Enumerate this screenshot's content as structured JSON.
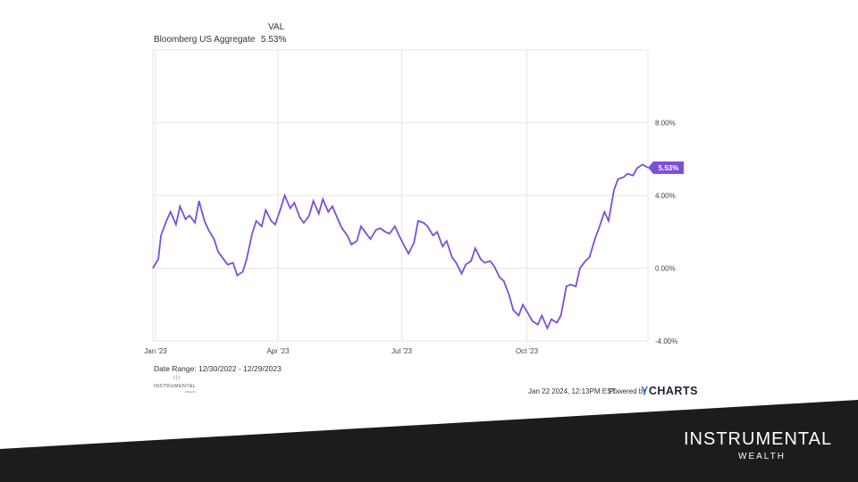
{
  "legend": {
    "header": "VAL",
    "series_name": "Bloomberg US Aggregate",
    "series_value": "5.53%"
  },
  "chart_data": {
    "type": "line",
    "series": [
      {
        "name": "Bloomberg US Aggregate",
        "color": "#7b4fd8",
        "points": [
          [
            "2022-12-30",
            0.0
          ],
          [
            "2023-01-03",
            0.5
          ],
          [
            "2023-01-05",
            1.8
          ],
          [
            "2023-01-09",
            2.6
          ],
          [
            "2023-01-12",
            3.1
          ],
          [
            "2023-01-16",
            2.4
          ],
          [
            "2023-01-19",
            3.4
          ],
          [
            "2023-01-23",
            2.7
          ],
          [
            "2023-01-26",
            2.9
          ],
          [
            "2023-01-30",
            2.5
          ],
          [
            "2023-02-02",
            3.7
          ],
          [
            "2023-02-06",
            2.6
          ],
          [
            "2023-02-09",
            2.1
          ],
          [
            "2023-02-13",
            1.6
          ],
          [
            "2023-02-16",
            0.9
          ],
          [
            "2023-02-20",
            0.5
          ],
          [
            "2023-02-23",
            0.2
          ],
          [
            "2023-02-27",
            0.3
          ],
          [
            "2023-03-02",
            -0.4
          ],
          [
            "2023-03-06",
            -0.2
          ],
          [
            "2023-03-09",
            0.5
          ],
          [
            "2023-03-13",
            1.9
          ],
          [
            "2023-03-16",
            2.6
          ],
          [
            "2023-03-20",
            2.3
          ],
          [
            "2023-03-23",
            3.2
          ],
          [
            "2023-03-27",
            2.6
          ],
          [
            "2023-03-30",
            2.4
          ],
          [
            "2023-04-03",
            3.3
          ],
          [
            "2023-04-06",
            4.0
          ],
          [
            "2023-04-10",
            3.3
          ],
          [
            "2023-04-13",
            3.6
          ],
          [
            "2023-04-17",
            2.8
          ],
          [
            "2023-04-20",
            2.5
          ],
          [
            "2023-04-24",
            2.9
          ],
          [
            "2023-04-27",
            3.7
          ],
          [
            "2023-05-01",
            3.0
          ],
          [
            "2023-05-04",
            3.8
          ],
          [
            "2023-05-08",
            3.1
          ],
          [
            "2023-05-11",
            3.4
          ],
          [
            "2023-05-15",
            2.7
          ],
          [
            "2023-05-18",
            2.2
          ],
          [
            "2023-05-22",
            1.8
          ],
          [
            "2023-05-25",
            1.3
          ],
          [
            "2023-05-29",
            1.5
          ],
          [
            "2023-06-01",
            2.3
          ],
          [
            "2023-06-05",
            1.9
          ],
          [
            "2023-06-08",
            1.6
          ],
          [
            "2023-06-12",
            2.1
          ],
          [
            "2023-06-15",
            2.2
          ],
          [
            "2023-06-19",
            2.0
          ],
          [
            "2023-06-22",
            1.9
          ],
          [
            "2023-06-26",
            2.3
          ],
          [
            "2023-06-29",
            1.8
          ],
          [
            "2023-07-03",
            1.2
          ],
          [
            "2023-07-06",
            0.8
          ],
          [
            "2023-07-10",
            1.4
          ],
          [
            "2023-07-13",
            2.6
          ],
          [
            "2023-07-17",
            2.5
          ],
          [
            "2023-07-20",
            2.3
          ],
          [
            "2023-07-24",
            1.8
          ],
          [
            "2023-07-27",
            2.0
          ],
          [
            "2023-07-31",
            1.2
          ],
          [
            "2023-08-03",
            1.5
          ],
          [
            "2023-08-07",
            0.6
          ],
          [
            "2023-08-10",
            0.3
          ],
          [
            "2023-08-14",
            -0.3
          ],
          [
            "2023-08-17",
            0.2
          ],
          [
            "2023-08-21",
            0.4
          ],
          [
            "2023-08-24",
            1.1
          ],
          [
            "2023-08-28",
            0.5
          ],
          [
            "2023-08-31",
            0.3
          ],
          [
            "2023-09-04",
            0.4
          ],
          [
            "2023-09-07",
            0.1
          ],
          [
            "2023-09-11",
            -0.5
          ],
          [
            "2023-09-14",
            -0.7
          ],
          [
            "2023-09-18",
            -1.5
          ],
          [
            "2023-09-21",
            -2.3
          ],
          [
            "2023-09-25",
            -2.6
          ],
          [
            "2023-09-28",
            -2.0
          ],
          [
            "2023-10-02",
            -2.5
          ],
          [
            "2023-10-05",
            -2.9
          ],
          [
            "2023-10-09",
            -3.1
          ],
          [
            "2023-10-12",
            -2.6
          ],
          [
            "2023-10-16",
            -3.3
          ],
          [
            "2023-10-19",
            -2.8
          ],
          [
            "2023-10-23",
            -3.0
          ],
          [
            "2023-10-26",
            -2.6
          ],
          [
            "2023-10-30",
            -1.0
          ],
          [
            "2023-11-02",
            -0.9
          ],
          [
            "2023-11-06",
            -1.0
          ],
          [
            "2023-11-09",
            0.0
          ],
          [
            "2023-11-13",
            0.4
          ],
          [
            "2023-11-16",
            0.6
          ],
          [
            "2023-11-20",
            1.6
          ],
          [
            "2023-11-23",
            2.2
          ],
          [
            "2023-11-27",
            3.1
          ],
          [
            "2023-11-30",
            2.6
          ],
          [
            "2023-12-04",
            4.3
          ],
          [
            "2023-12-07",
            4.9
          ],
          [
            "2023-12-11",
            5.0
          ],
          [
            "2023-12-14",
            5.2
          ],
          [
            "2023-12-18",
            5.1
          ],
          [
            "2023-12-21",
            5.5
          ],
          [
            "2023-12-25",
            5.7
          ],
          [
            "2023-12-29",
            5.53
          ]
        ]
      }
    ],
    "xticks": [
      {
        "label": "Jan '23",
        "date": "2023-01-01"
      },
      {
        "label": "Apr '23",
        "date": "2023-04-01"
      },
      {
        "label": "Jul '23",
        "date": "2023-07-01"
      },
      {
        "label": "Oct '23",
        "date": "2023-10-01"
      }
    ],
    "xlim": [
      "2022-12-30",
      "2023-12-29"
    ],
    "yticks": [
      {
        "label": "8.00%",
        "value": 8
      },
      {
        "label": "4.00%",
        "value": 4
      },
      {
        "label": "0.00%",
        "value": 0
      },
      {
        "label": "-4.00%",
        "value": -4
      }
    ],
    "ylim": [
      -4,
      12
    ],
    "last_value_label": "5.53%",
    "grid": true
  },
  "footer": {
    "date_range": "Date Range: 12/30/2022 - 12/29/2023",
    "timestamp": "Jan 22 2024, 12:13PM EST.",
    "powered_by": "Powered by",
    "ycharts_y": "Y",
    "ycharts_rest": "CHARTS",
    "mini_logo_bars": "ı|ı",
    "mini_logo_text": "INSTRUMENTAL",
    "mini_logo_sub": "WEALTH",
    "brand_name": "INSTRUMENTAL",
    "brand_sub": "WEALTH"
  }
}
